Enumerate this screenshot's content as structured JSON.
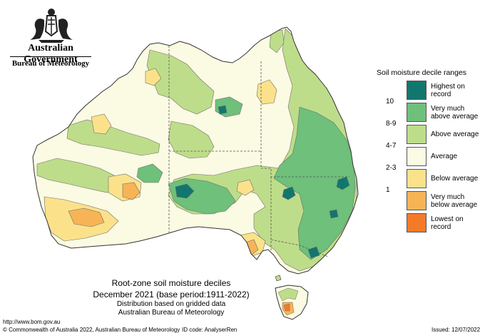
{
  "header": {
    "government": "Australian Government",
    "bureau": "Bureau of Meteorology"
  },
  "caption": {
    "title": "Root-zone soil moisture deciles",
    "subtitle": "December 2021 (base period:1911-2022)",
    "line3": "Distribution based on gridded data",
    "line4": "Australian Bureau of Meteorology"
  },
  "legend": {
    "title": "Soil moisture decile ranges",
    "items": [
      {
        "code": "",
        "label": "Highest on record",
        "color": "#11776e"
      },
      {
        "code": "10",
        "label": "Very much above average",
        "color": "#6ec07a"
      },
      {
        "code": "8-9",
        "label": "Above average",
        "color": "#bedd8a"
      },
      {
        "code": "4-7",
        "label": "Average",
        "color": "#fbfae3"
      },
      {
        "code": "2-3",
        "label": "Below average",
        "color": "#fbe28a"
      },
      {
        "code": "1",
        "label": "Very much below average",
        "color": "#f7b456"
      },
      {
        "code": "",
        "label": "Lowest on record",
        "color": "#f57a28"
      }
    ]
  },
  "footer": {
    "url": "http://www.bom.gov.au",
    "copyright": "© Commonwealth of Australia 2022, Australian Bureau of Meteorology",
    "id_code": "ID code: AnalyserRen",
    "issued": "Issued: 12/07/2022"
  },
  "icons": {
    "crest": "coat-of-arms-icon"
  }
}
